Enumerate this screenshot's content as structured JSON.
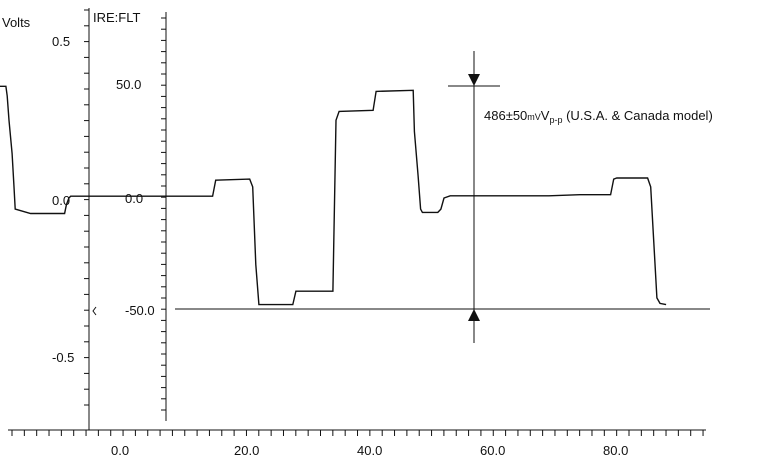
{
  "chart_data": {
    "type": "line",
    "title": "",
    "left_axis": {
      "label": "Volts",
      "ticks": [
        "0.5",
        "0.0",
        "-0.5"
      ],
      "ylim": [
        -0.9,
        0.6
      ]
    },
    "mid_axis": {
      "label": "IRE:FLT",
      "ticks": [
        "50.0",
        "0.0",
        "-50.0"
      ]
    },
    "x_axis": {
      "ticks": [
        "0.0",
        "20.0",
        "40.0",
        "60.0",
        "80.0"
      ],
      "xlim": [
        -19,
        92
      ]
    },
    "annotation": {
      "main": "486±50",
      "unit": "mV",
      "sub": "p-p",
      "suffix": " (U.S.A. & Canada model)"
    },
    "series": [
      {
        "x": [
          -19,
          -18,
          -17.8,
          -17.5,
          -17,
          -16.7,
          -16.5,
          -14,
          -12,
          -8.5,
          -8.2,
          -7.8,
          -7.5,
          15.5,
          16,
          21.5,
          22,
          22.5,
          23,
          28.5,
          29,
          35,
          35.5,
          36,
          41.5,
          42,
          48,
          48.2,
          48.8,
          49.2,
          49.5,
          52,
          52.5,
          53,
          54,
          54.5,
          55,
          70,
          75,
          80,
          80.5,
          81,
          86,
          86.5,
          87,
          87.5,
          88,
          89
        ],
        "y": [
          50.3,
          50.3,
          46,
          35,
          20,
          5,
          -5,
          -7,
          -7,
          -7,
          -3,
          0,
          0.8,
          0.8,
          8,
          8.5,
          5,
          -30,
          -48,
          -48,
          -42,
          -42,
          35,
          39,
          39.5,
          48,
          48.5,
          30,
          10,
          -5,
          -6.5,
          -6.5,
          -5,
          0,
          1,
          1,
          1,
          1,
          1.5,
          1.5,
          8.5,
          9,
          9,
          5,
          -20,
          -45,
          -47.5,
          -48
        ]
      }
    ]
  }
}
